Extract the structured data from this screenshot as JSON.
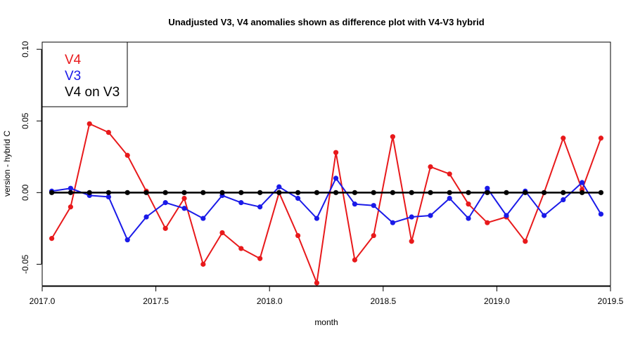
{
  "chart_data": {
    "type": "line",
    "title": "Unadjusted V3, V4 anomalies shown as difference plot with V4-V3 hybrid",
    "xlabel": "month",
    "ylabel": "version - hybrid C",
    "xlim": [
      2017.0,
      2019.5
    ],
    "ylim": [
      -0.065,
      0.105
    ],
    "xticks": [
      "2017.0",
      "2017.5",
      "2018.0",
      "2018.5",
      "2019.0",
      "2019.5"
    ],
    "yticks": [
      "-0.05",
      "0.00",
      "0.05",
      "0.10"
    ],
    "x": [
      2017.042,
      2017.125,
      2017.208,
      2017.292,
      2017.375,
      2017.458,
      2017.542,
      2017.625,
      2017.708,
      2017.792,
      2017.875,
      2017.958,
      2018.042,
      2018.125,
      2018.208,
      2018.292,
      2018.375,
      2018.458,
      2018.542,
      2018.625,
      2018.708,
      2018.792,
      2018.875,
      2018.958,
      2019.042,
      2019.125,
      2019.208,
      2019.292,
      2019.375,
      2019.458
    ],
    "series": [
      {
        "name": "V4",
        "color": "#e8191b",
        "values": [
          -0.032,
          -0.01,
          0.048,
          0.042,
          0.026,
          0.001,
          -0.025,
          -0.004,
          -0.05,
          -0.028,
          -0.039,
          -0.046,
          0.0,
          -0.03,
          -0.063,
          0.028,
          -0.047,
          -0.03,
          0.039,
          -0.034,
          0.018,
          0.013,
          -0.008,
          -0.021,
          -0.017,
          -0.034,
          0.0,
          0.038,
          0.002,
          0.038
        ]
      },
      {
        "name": "V3",
        "color": "#1a1ae8",
        "values": [
          0.001,
          0.003,
          -0.002,
          -0.003,
          -0.033,
          -0.017,
          -0.007,
          -0.011,
          -0.018,
          -0.002,
          -0.007,
          -0.01,
          0.004,
          -0.004,
          -0.018,
          0.01,
          -0.008,
          -0.009,
          -0.021,
          -0.017,
          -0.016,
          -0.004,
          -0.018,
          0.003,
          -0.016,
          0.001,
          -0.016,
          -0.005,
          0.007,
          -0.015
        ]
      },
      {
        "name": "V4 on V3",
        "color": "#000000",
        "values": [
          0,
          0,
          0,
          0,
          0,
          0,
          0,
          0,
          0,
          0,
          0,
          0,
          0,
          0,
          0,
          0,
          0,
          0,
          0,
          0,
          0,
          0,
          0,
          0,
          0,
          0,
          0,
          0,
          0,
          0
        ]
      }
    ],
    "legend_position": "top-left",
    "grid": false
  }
}
